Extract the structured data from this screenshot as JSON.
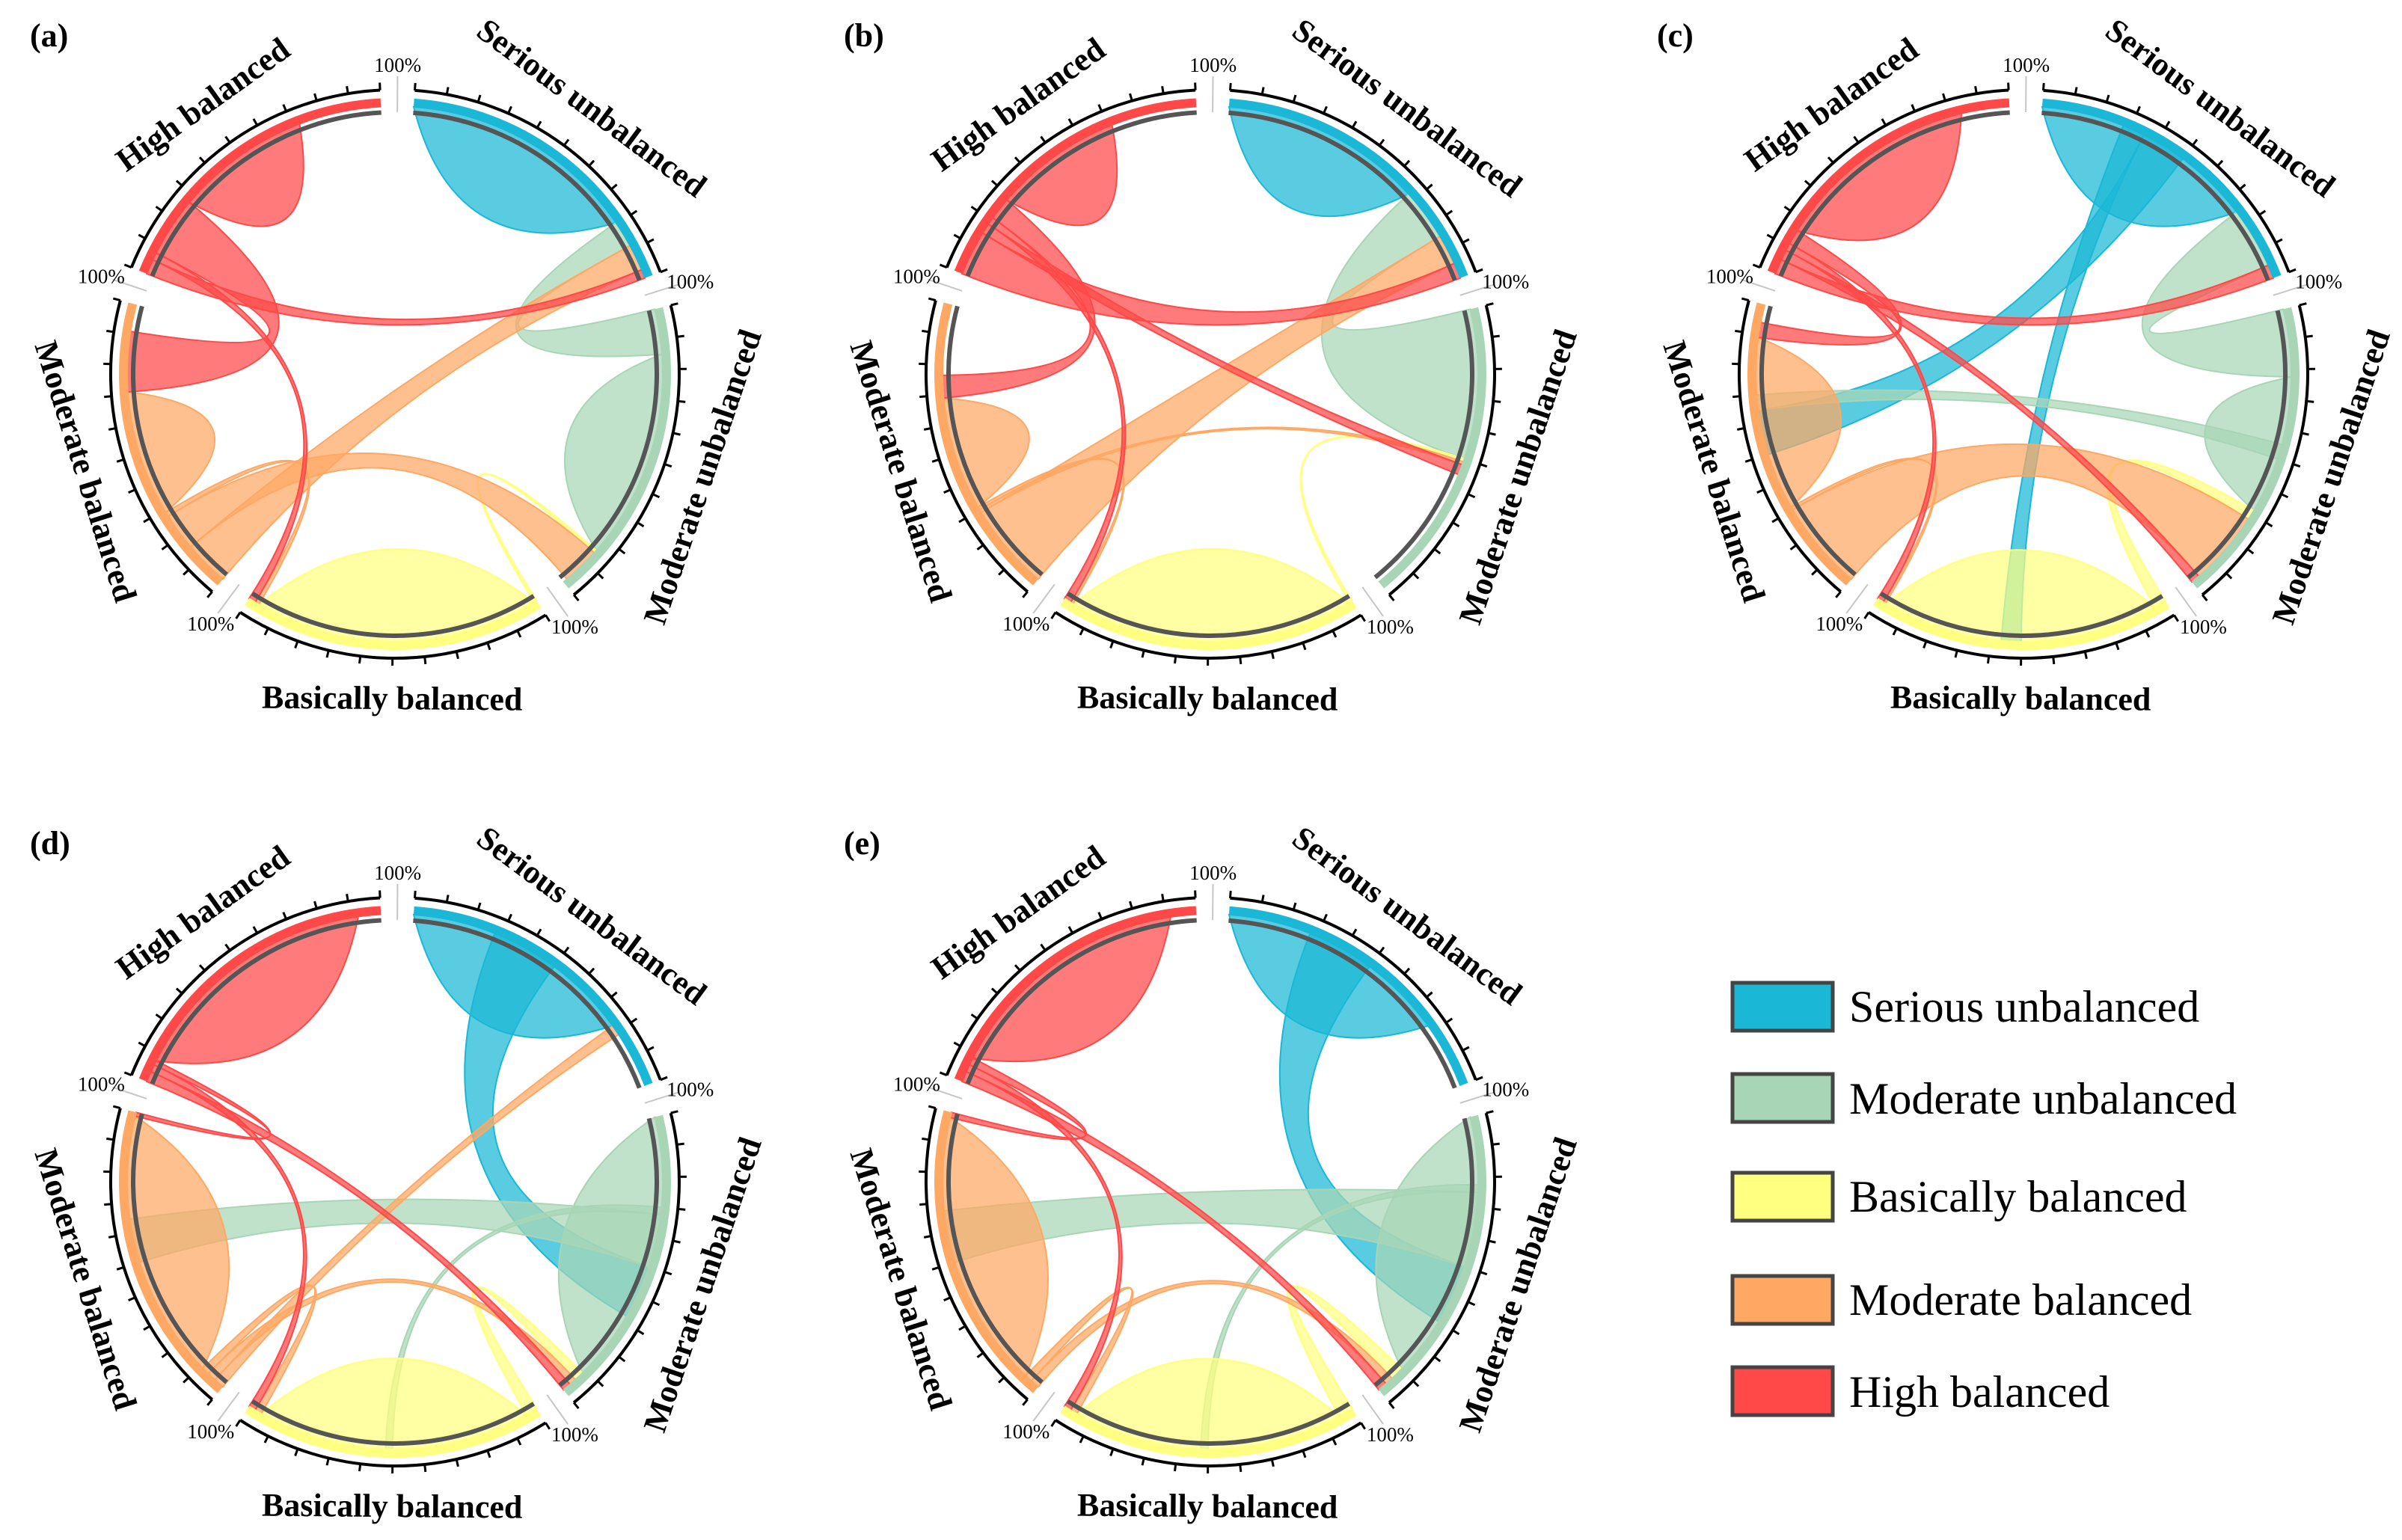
{
  "chart_data": {
    "type": "chord",
    "categories": [
      "Serious unbalanced",
      "Moderate unbalanced",
      "Basically balanced",
      "Moderate balanced",
      "High balanced"
    ],
    "colors": [
      "#1ab8d6",
      "#a8d5b5",
      "#ffff80",
      "#ffa864",
      "#ff4848"
    ],
    "axis_end_label": "100%",
    "legend": {
      "items": [
        "Serious unbalanced",
        "Moderate unbalanced",
        "Basically balanced",
        "Moderate balanced",
        "High balanced"
      ],
      "placement": "bottom-right"
    },
    "panels": [
      {
        "label": "(a)",
        "flows": [
          [
            1,
            0,
            0,
            0,
            0
          ],
          [
            0.3,
            0.7,
            0,
            0,
            0
          ],
          [
            0,
            0.02,
            0.98,
            0,
            0
          ],
          [
            0.3,
            0.25,
            0.03,
            0.42,
            0
          ],
          [
            0.1,
            0,
            0.05,
            0.4,
            0.45
          ]
        ]
      },
      {
        "label": "(b)",
        "flows": [
          [
            1,
            0,
            0,
            0,
            0
          ],
          [
            1,
            0,
            0,
            0,
            0
          ],
          [
            0,
            0.02,
            0.98,
            0,
            0
          ],
          [
            0.58,
            0.02,
            0.02,
            0.38,
            0
          ],
          [
            0.3,
            0.07,
            0.05,
            0.15,
            0.43
          ]
        ]
      },
      {
        "label": "(c)",
        "flows": [
          [
            0.55,
            0,
            0.15,
            0.3,
            0
          ],
          [
            0.45,
            0.45,
            0,
            0.1,
            0
          ],
          [
            0,
            0.08,
            0.92,
            0,
            0
          ],
          [
            0,
            0.6,
            0.02,
            0.38,
            0
          ],
          [
            0.1,
            0.07,
            0.05,
            0.1,
            0.68
          ]
        ]
      },
      {
        "label": "(d)",
        "flows": [
          [
            0.55,
            0.45,
            0,
            0,
            0
          ],
          [
            0,
            0.6,
            0.05,
            0.35,
            0
          ],
          [
            0,
            0.08,
            0.92,
            0,
            0
          ],
          [
            0.07,
            0.06,
            0.05,
            0.82,
            0
          ],
          [
            0,
            0.07,
            0.05,
            0.03,
            0.85
          ]
        ]
      },
      {
        "label": "(e)",
        "flows": [
          [
            0.55,
            0.45,
            0,
            0,
            0
          ],
          [
            0,
            0.45,
            0.05,
            0.5,
            0
          ],
          [
            0,
            0.1,
            0.9,
            0,
            0
          ],
          [
            0,
            0.06,
            0.05,
            0.89,
            0
          ],
          [
            0,
            0.07,
            0.05,
            0.05,
            0.83
          ]
        ]
      }
    ]
  }
}
